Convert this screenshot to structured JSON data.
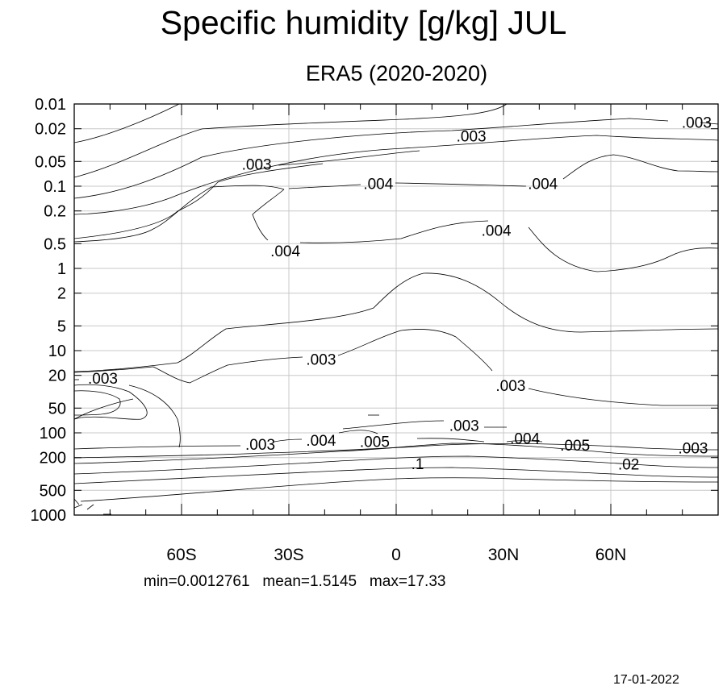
{
  "chart_data": {
    "type": "contour",
    "title": "Specific humidity [g/kg] JUL",
    "subtitle": "ERA5 (2020-2020)",
    "x_axis": {
      "ticks": [
        {
          "value": -60,
          "label": "60S"
        },
        {
          "value": -30,
          "label": "30S"
        },
        {
          "value": 0,
          "label": "0"
        },
        {
          "value": 30,
          "label": "30N"
        },
        {
          "value": 60,
          "label": "60N"
        }
      ],
      "range": [
        -90,
        90
      ],
      "grid": true
    },
    "y_axis": {
      "scale": "log",
      "reversed": true,
      "ticks": [
        0.01,
        0.02,
        0.05,
        0.1,
        0.2,
        0.5,
        1,
        2,
        5,
        10,
        20,
        50,
        100,
        200,
        500,
        1000
      ],
      "tick_labels": [
        "0.01",
        "0.02",
        "0.05",
        "0.1",
        "0.2",
        "0.5",
        "1",
        "2",
        "5",
        "10",
        "20",
        "50",
        "100",
        "200",
        "500",
        "1000"
      ],
      "range": [
        0.01,
        1000
      ],
      "grid": true
    },
    "contour_levels": [
      0.003,
      0.004,
      0.005,
      0.02,
      0.1
    ],
    "contour_labels": [
      {
        "text": ".003",
        "lat": 84,
        "p": 0.017
      },
      {
        "text": ".003",
        "lat": 21,
        "p": 0.025
      },
      {
        "text": ".003",
        "lat": -39,
        "p": 0.055
      },
      {
        "text": ".004",
        "lat": -5,
        "p": 0.095
      },
      {
        "text": ".004",
        "lat": 41,
        "p": 0.095
      },
      {
        "text": ".004",
        "lat": 28,
        "p": 0.35
      },
      {
        "text": ".004",
        "lat": -31,
        "p": 0.62
      },
      {
        "text": ".003",
        "lat": -21,
        "p": 13
      },
      {
        "text": ".003",
        "lat": 32,
        "p": 27
      },
      {
        "text": ".003",
        "lat": -82,
        "p": 22
      },
      {
        "text": ".003",
        "lat": 19,
        "p": 83
      },
      {
        "text": ".003",
        "lat": -38,
        "p": 140
      },
      {
        "text": ".004",
        "lat": -21,
        "p": 125
      },
      {
        "text": ".005",
        "lat": -6,
        "p": 130
      },
      {
        "text": ".004",
        "lat": 36,
        "p": 118
      },
      {
        "text": ".005",
        "lat": 50,
        "p": 143
      },
      {
        "text": ".003",
        "lat": 83,
        "p": 155
      },
      {
        "text": ".1",
        "lat": 6,
        "p": 240
      },
      {
        "text": ".02",
        "lat": 65,
        "p": 245
      }
    ],
    "stats": {
      "min": "0.0012761",
      "mean": "1.5145",
      "max": "17.33"
    }
  },
  "labels": {
    "stats_text": "min=0.0012761   mean=1.5145   max=17.33",
    "date": "17-01-2022"
  },
  "colors": {
    "line": "#000000",
    "grid": "#c8c8c8",
    "background": "#ffffff"
  }
}
